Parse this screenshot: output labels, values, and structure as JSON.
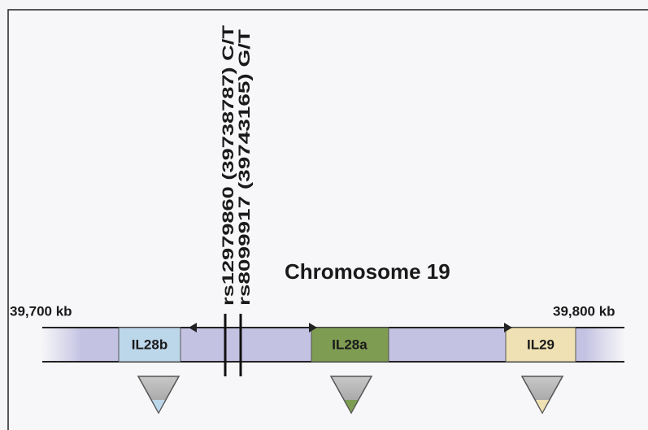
{
  "title": "Chromosome 19",
  "scale": {
    "start": "39,700 kb",
    "end": "39,800 kb"
  },
  "snps": [
    {
      "label": "rs12979860 (39738787) C/T"
    },
    {
      "label": "rs8099917 (39743165) G/T"
    }
  ],
  "genes": [
    {
      "label": "IL28b"
    },
    {
      "label": "IL28a"
    },
    {
      "label": "IL29"
    }
  ]
}
